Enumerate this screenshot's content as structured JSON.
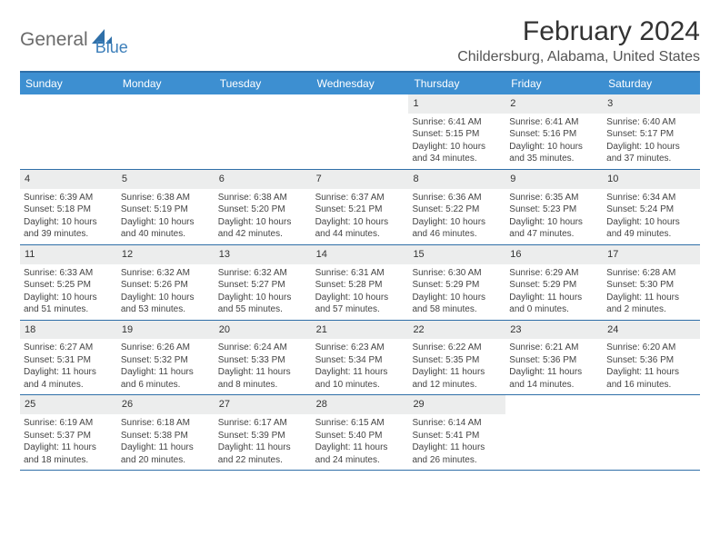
{
  "logo": {
    "part1": "General",
    "part2": "Blue"
  },
  "title": "February 2024",
  "location": "Childersburg, Alabama, United States",
  "colors": {
    "header_bg": "#3d8fd1",
    "border": "#2f6fa8",
    "daynum_bg": "#eceded",
    "logo_gray": "#6b6b6b",
    "logo_blue": "#3d7fba"
  },
  "weekdays": [
    "Sunday",
    "Monday",
    "Tuesday",
    "Wednesday",
    "Thursday",
    "Friday",
    "Saturday"
  ],
  "weeks": [
    [
      {
        "n": "",
        "sr": "",
        "ss": "",
        "dl": ""
      },
      {
        "n": "",
        "sr": "",
        "ss": "",
        "dl": ""
      },
      {
        "n": "",
        "sr": "",
        "ss": "",
        "dl": ""
      },
      {
        "n": "",
        "sr": "",
        "ss": "",
        "dl": ""
      },
      {
        "n": "1",
        "sr": "Sunrise: 6:41 AM",
        "ss": "Sunset: 5:15 PM",
        "dl": "Daylight: 10 hours and 34 minutes."
      },
      {
        "n": "2",
        "sr": "Sunrise: 6:41 AM",
        "ss": "Sunset: 5:16 PM",
        "dl": "Daylight: 10 hours and 35 minutes."
      },
      {
        "n": "3",
        "sr": "Sunrise: 6:40 AM",
        "ss": "Sunset: 5:17 PM",
        "dl": "Daylight: 10 hours and 37 minutes."
      }
    ],
    [
      {
        "n": "4",
        "sr": "Sunrise: 6:39 AM",
        "ss": "Sunset: 5:18 PM",
        "dl": "Daylight: 10 hours and 39 minutes."
      },
      {
        "n": "5",
        "sr": "Sunrise: 6:38 AM",
        "ss": "Sunset: 5:19 PM",
        "dl": "Daylight: 10 hours and 40 minutes."
      },
      {
        "n": "6",
        "sr": "Sunrise: 6:38 AM",
        "ss": "Sunset: 5:20 PM",
        "dl": "Daylight: 10 hours and 42 minutes."
      },
      {
        "n": "7",
        "sr": "Sunrise: 6:37 AM",
        "ss": "Sunset: 5:21 PM",
        "dl": "Daylight: 10 hours and 44 minutes."
      },
      {
        "n": "8",
        "sr": "Sunrise: 6:36 AM",
        "ss": "Sunset: 5:22 PM",
        "dl": "Daylight: 10 hours and 46 minutes."
      },
      {
        "n": "9",
        "sr": "Sunrise: 6:35 AM",
        "ss": "Sunset: 5:23 PM",
        "dl": "Daylight: 10 hours and 47 minutes."
      },
      {
        "n": "10",
        "sr": "Sunrise: 6:34 AM",
        "ss": "Sunset: 5:24 PM",
        "dl": "Daylight: 10 hours and 49 minutes."
      }
    ],
    [
      {
        "n": "11",
        "sr": "Sunrise: 6:33 AM",
        "ss": "Sunset: 5:25 PM",
        "dl": "Daylight: 10 hours and 51 minutes."
      },
      {
        "n": "12",
        "sr": "Sunrise: 6:32 AM",
        "ss": "Sunset: 5:26 PM",
        "dl": "Daylight: 10 hours and 53 minutes."
      },
      {
        "n": "13",
        "sr": "Sunrise: 6:32 AM",
        "ss": "Sunset: 5:27 PM",
        "dl": "Daylight: 10 hours and 55 minutes."
      },
      {
        "n": "14",
        "sr": "Sunrise: 6:31 AM",
        "ss": "Sunset: 5:28 PM",
        "dl": "Daylight: 10 hours and 57 minutes."
      },
      {
        "n": "15",
        "sr": "Sunrise: 6:30 AM",
        "ss": "Sunset: 5:29 PM",
        "dl": "Daylight: 10 hours and 58 minutes."
      },
      {
        "n": "16",
        "sr": "Sunrise: 6:29 AM",
        "ss": "Sunset: 5:29 PM",
        "dl": "Daylight: 11 hours and 0 minutes."
      },
      {
        "n": "17",
        "sr": "Sunrise: 6:28 AM",
        "ss": "Sunset: 5:30 PM",
        "dl": "Daylight: 11 hours and 2 minutes."
      }
    ],
    [
      {
        "n": "18",
        "sr": "Sunrise: 6:27 AM",
        "ss": "Sunset: 5:31 PM",
        "dl": "Daylight: 11 hours and 4 minutes."
      },
      {
        "n": "19",
        "sr": "Sunrise: 6:26 AM",
        "ss": "Sunset: 5:32 PM",
        "dl": "Daylight: 11 hours and 6 minutes."
      },
      {
        "n": "20",
        "sr": "Sunrise: 6:24 AM",
        "ss": "Sunset: 5:33 PM",
        "dl": "Daylight: 11 hours and 8 minutes."
      },
      {
        "n": "21",
        "sr": "Sunrise: 6:23 AM",
        "ss": "Sunset: 5:34 PM",
        "dl": "Daylight: 11 hours and 10 minutes."
      },
      {
        "n": "22",
        "sr": "Sunrise: 6:22 AM",
        "ss": "Sunset: 5:35 PM",
        "dl": "Daylight: 11 hours and 12 minutes."
      },
      {
        "n": "23",
        "sr": "Sunrise: 6:21 AM",
        "ss": "Sunset: 5:36 PM",
        "dl": "Daylight: 11 hours and 14 minutes."
      },
      {
        "n": "24",
        "sr": "Sunrise: 6:20 AM",
        "ss": "Sunset: 5:36 PM",
        "dl": "Daylight: 11 hours and 16 minutes."
      }
    ],
    [
      {
        "n": "25",
        "sr": "Sunrise: 6:19 AM",
        "ss": "Sunset: 5:37 PM",
        "dl": "Daylight: 11 hours and 18 minutes."
      },
      {
        "n": "26",
        "sr": "Sunrise: 6:18 AM",
        "ss": "Sunset: 5:38 PM",
        "dl": "Daylight: 11 hours and 20 minutes."
      },
      {
        "n": "27",
        "sr": "Sunrise: 6:17 AM",
        "ss": "Sunset: 5:39 PM",
        "dl": "Daylight: 11 hours and 22 minutes."
      },
      {
        "n": "28",
        "sr": "Sunrise: 6:15 AM",
        "ss": "Sunset: 5:40 PM",
        "dl": "Daylight: 11 hours and 24 minutes."
      },
      {
        "n": "29",
        "sr": "Sunrise: 6:14 AM",
        "ss": "Sunset: 5:41 PM",
        "dl": "Daylight: 11 hours and 26 minutes."
      },
      {
        "n": "",
        "sr": "",
        "ss": "",
        "dl": ""
      },
      {
        "n": "",
        "sr": "",
        "ss": "",
        "dl": ""
      }
    ]
  ]
}
